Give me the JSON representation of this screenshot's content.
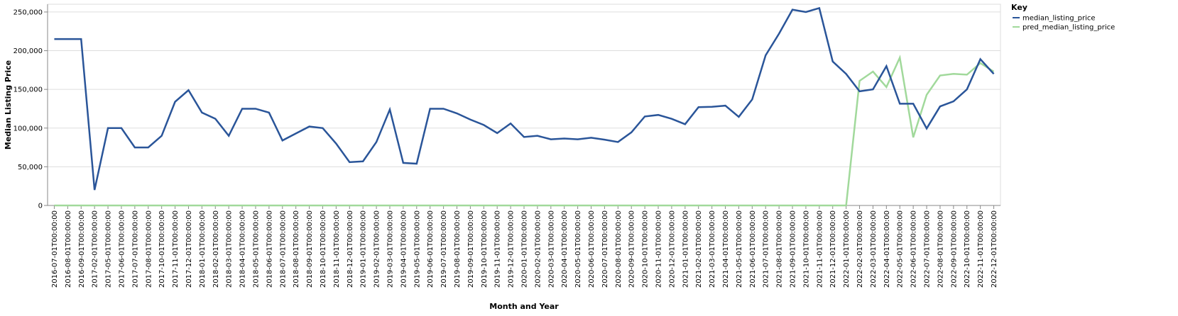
{
  "chart_data": {
    "type": "line",
    "title": "",
    "xlabel": "Month and Year",
    "ylabel": "Median Listing Price",
    "ylim": [
      0,
      260000
    ],
    "y_ticks": [
      0,
      50000,
      100000,
      150000,
      200000,
      250000
    ],
    "y_tick_labels": [
      "0",
      "50,000",
      "100,000",
      "150,000",
      "200,000",
      "250,000"
    ],
    "grid": true,
    "legend": {
      "title": "Key",
      "position": "right"
    },
    "x": [
      "2016-07-01T00:00:00",
      "2016-08-01T00:00:00",
      "2016-09-01T00:00:00",
      "2017-02-01T00:00:00",
      "2017-05-01T00:00:00",
      "2017-06-01T00:00:00",
      "2017-07-01T00:00:00",
      "2017-08-01T00:00:00",
      "2017-10-01T00:00:00",
      "2017-11-01T00:00:00",
      "2017-12-01T00:00:00",
      "2018-01-01T00:00:00",
      "2018-02-01T00:00:00",
      "2018-03-01T00:00:00",
      "2018-04-01T00:00:00",
      "2018-05-01T00:00:00",
      "2018-06-01T00:00:00",
      "2018-07-01T00:00:00",
      "2018-08-01T00:00:00",
      "2018-09-01T00:00:00",
      "2018-10-01T00:00:00",
      "2018-11-01T00:00:00",
      "2018-12-01T00:00:00",
      "2019-01-01T00:00:00",
      "2019-02-01T00:00:00",
      "2019-03-01T00:00:00",
      "2019-04-01T00:00:00",
      "2019-05-01T00:00:00",
      "2019-06-01T00:00:00",
      "2019-07-01T00:00:00",
      "2019-08-01T00:00:00",
      "2019-09-01T00:00:00",
      "2019-10-01T00:00:00",
      "2019-11-01T00:00:00",
      "2019-12-01T00:00:00",
      "2020-01-01T00:00:00",
      "2020-02-01T00:00:00",
      "2020-03-01T00:00:00",
      "2020-04-01T00:00:00",
      "2020-05-01T00:00:00",
      "2020-06-01T00:00:00",
      "2020-07-01T00:00:00",
      "2020-08-01T00:00:00",
      "2020-09-01T00:00:00",
      "2020-10-01T00:00:00",
      "2020-11-01T00:00:00",
      "2020-12-01T00:00:00",
      "2021-01-01T00:00:00",
      "2021-02-01T00:00:00",
      "2021-03-01T00:00:00",
      "2021-04-01T00:00:00",
      "2021-05-01T00:00:00",
      "2021-06-01T00:00:00",
      "2021-07-01T00:00:00",
      "2021-08-01T00:00:00",
      "2021-09-01T00:00:00",
      "2021-10-01T00:00:00",
      "2021-11-01T00:00:00",
      "2021-12-01T00:00:00",
      "2022-01-01T00:00:00",
      "2022-02-01T00:00:00",
      "2022-03-01T00:00:00",
      "2022-04-01T00:00:00",
      "2022-05-01T00:00:00",
      "2022-06-01T00:00:00",
      "2022-07-01T00:00:00",
      "2022-08-01T00:00:00",
      "2022-09-01T00:00:00",
      "2022-10-01T00:00:00",
      "2022-11-01T00:00:00",
      "2022-12-01T00:00:00"
    ],
    "series": [
      {
        "name": "median_listing_price",
        "color": "#2a5599",
        "values": [
          215000,
          215000,
          215000,
          20000,
          100000,
          100000,
          75000,
          75000,
          90000,
          134000,
          149000,
          120000,
          112000,
          90000,
          125000,
          125000,
          120000,
          84000,
          93000,
          102000,
          100000,
          80000,
          56000,
          57000,
          82000,
          124000,
          55000,
          54000,
          125000,
          125000,
          119000,
          111000,
          104000,
          93500,
          106000,
          88500,
          90000,
          85500,
          86500,
          85500,
          87500,
          85000,
          82000,
          94500,
          115000,
          117000,
          112000,
          105000,
          127000,
          127500,
          129000,
          114500,
          137000,
          194000,
          222000,
          253000,
          250000,
          255000,
          186000,
          170000,
          147500,
          150000,
          180000,
          131500,
          131500,
          99500,
          128000,
          134500,
          150000,
          189000,
          170000
        ]
      },
      {
        "name": "pred_median_listing_price",
        "color": "#a1d99b",
        "values": [
          0,
          0,
          0,
          0,
          0,
          0,
          0,
          0,
          0,
          0,
          0,
          0,
          0,
          0,
          0,
          0,
          0,
          0,
          0,
          0,
          0,
          0,
          0,
          0,
          0,
          0,
          0,
          0,
          0,
          0,
          0,
          0,
          0,
          0,
          0,
          0,
          0,
          0,
          0,
          0,
          0,
          0,
          0,
          0,
          0,
          0,
          0,
          0,
          0,
          0,
          0,
          0,
          0,
          0,
          0,
          0,
          0,
          0,
          0,
          0,
          161000,
          173000,
          153000,
          191000,
          88000,
          143000,
          168000,
          170000,
          169000,
          184000,
          173000
        ]
      }
    ]
  }
}
